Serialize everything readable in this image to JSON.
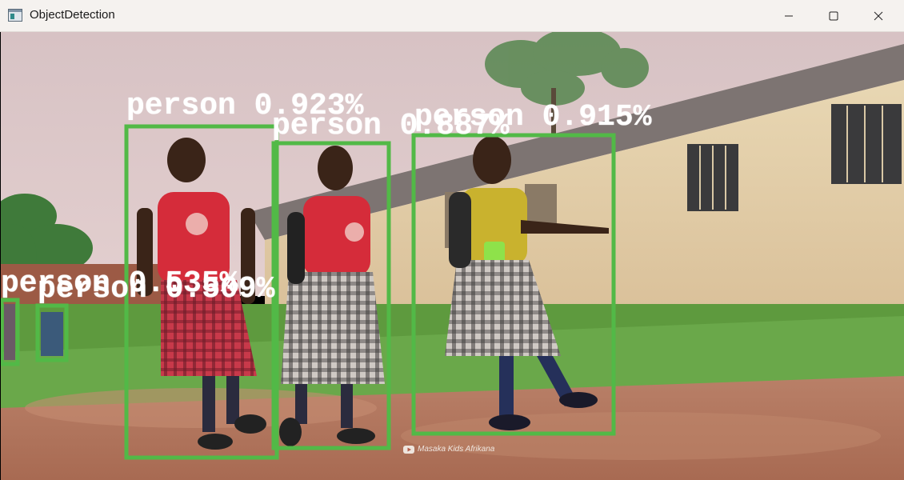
{
  "window": {
    "title": "ObjectDetection",
    "icon": "app-window-icon",
    "controls": [
      "minimize-icon",
      "maximize-icon",
      "close-icon"
    ]
  },
  "detections": [
    {
      "label": "person 0.923%"
    },
    {
      "label": "person 0.887%"
    },
    {
      "label": "person 0.915%"
    },
    {
      "label": "person 0.535%"
    },
    {
      "label": "person 0.509%"
    }
  ],
  "box_color": "#52b947",
  "watermark": {
    "text": "Masaka Kids Afrikana",
    "icon": "youtube-icon"
  }
}
